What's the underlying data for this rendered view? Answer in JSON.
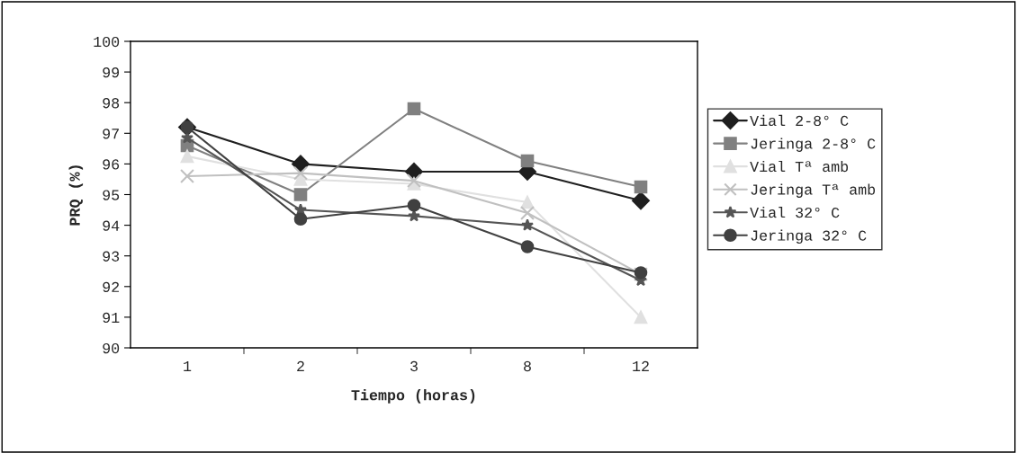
{
  "chart_data": {
    "type": "line",
    "xlabel": "Tiempo (horas)",
    "ylabel": "PRQ (%)",
    "categories": [
      "1",
      "2",
      "3",
      "8",
      "12"
    ],
    "series": [
      {
        "name": "Vial 2-8° C",
        "color": "#1f1f1f",
        "marker": "diamond",
        "values": [
          97.2,
          96.0,
          95.75,
          95.75,
          94.8
        ]
      },
      {
        "name": "Jeringa 2-8° C",
        "color": "#808080",
        "marker": "square",
        "values": [
          96.6,
          95.0,
          97.8,
          96.1,
          95.25
        ]
      },
      {
        "name": "Vial Tª amb",
        "color": "#e0e0e0",
        "marker": "triangle",
        "values": [
          96.25,
          95.5,
          95.35,
          94.75,
          91.0
        ]
      },
      {
        "name": "Jeringa Tª amb",
        "color": "#c0c0c0",
        "marker": "cross",
        "values": [
          95.6,
          95.7,
          95.45,
          94.4,
          92.4
        ]
      },
      {
        "name": "Vial 32° C",
        "color": "#555555",
        "marker": "star",
        "values": [
          96.85,
          94.5,
          94.3,
          94.0,
          92.2
        ]
      },
      {
        "name": "Jeringa 32° C",
        "color": "#404040",
        "marker": "circle",
        "values": [
          97.2,
          94.2,
          94.65,
          93.3,
          92.45
        ]
      }
    ],
    "ylim": [
      90,
      100
    ],
    "yticks": [
      90,
      91,
      92,
      93,
      94,
      95,
      96,
      97,
      98,
      99,
      100
    ],
    "grid": false,
    "legend": "right",
    "line_style": "solid"
  }
}
